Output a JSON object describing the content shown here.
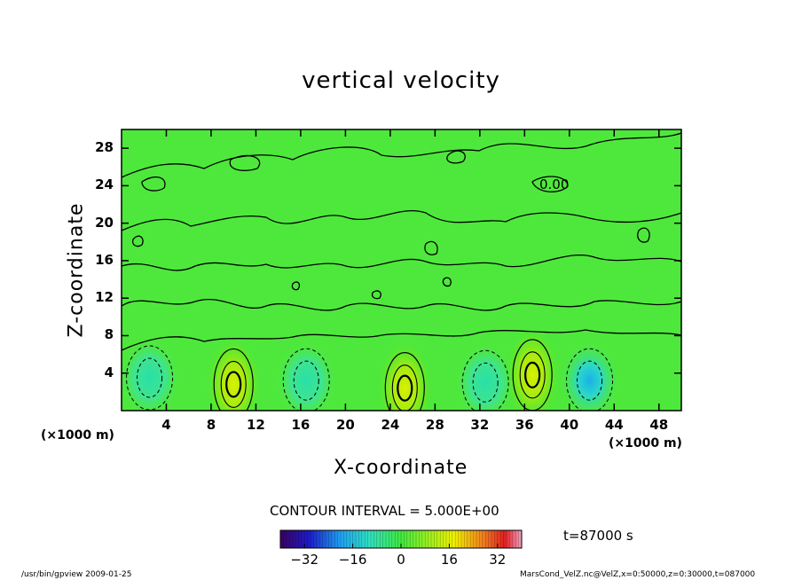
{
  "header": {
    "title": "vertical velocity"
  },
  "chart_data": {
    "type": "contour",
    "title": "vertical velocity",
    "xlabel": "X-coordinate",
    "ylabel": "Z-coordinate",
    "x_unit": "(×1000 m)",
    "y_unit": "(×1000 m)",
    "xlim": [
      0,
      50
    ],
    "ylim": [
      0,
      30
    ],
    "x_ticks": [
      "4",
      "8",
      "12",
      "16",
      "20",
      "24",
      "28",
      "32",
      "36",
      "40",
      "44",
      "48"
    ],
    "y_ticks": [
      "4",
      "8",
      "12",
      "16",
      "20",
      "24",
      "28"
    ],
    "x_tick_values": [
      4,
      8,
      12,
      16,
      20,
      24,
      28,
      32,
      36,
      40,
      44,
      48
    ],
    "y_tick_values": [
      4,
      8,
      12,
      16,
      20,
      24,
      28
    ],
    "contour_label": "0.00",
    "contour_interval": "CONTOUR INTERVAL = 5.000E+00",
    "time_label": "t=87000 s",
    "colorbar": {
      "ticks": [
        "−32",
        "−16",
        "0",
        "16",
        "32"
      ],
      "tick_values": [
        -32,
        -16,
        0,
        16,
        32
      ],
      "range": [
        -40,
        40
      ]
    },
    "features": [
      {
        "kind": "updraft",
        "x": 10.0,
        "z": 2.8
      },
      {
        "kind": "downdraft",
        "x": 16.5,
        "z": 3.2
      },
      {
        "kind": "downdraft",
        "x": 2.5,
        "z": 3.5
      },
      {
        "kind": "updraft",
        "x": 25.3,
        "z": 2.4
      },
      {
        "kind": "downdraft",
        "x": 32.5,
        "z": 3.0
      },
      {
        "kind": "updraft",
        "x": 36.7,
        "z": 3.8
      },
      {
        "kind": "downdraft",
        "x": 41.8,
        "z": 3.2
      }
    ]
  },
  "footer": {
    "left": "/usr/bin/gpview   2009-01-25",
    "right": "MarsCond_VelZ.nc@VelZ,x=0:50000,z=0:30000,t=087000"
  }
}
